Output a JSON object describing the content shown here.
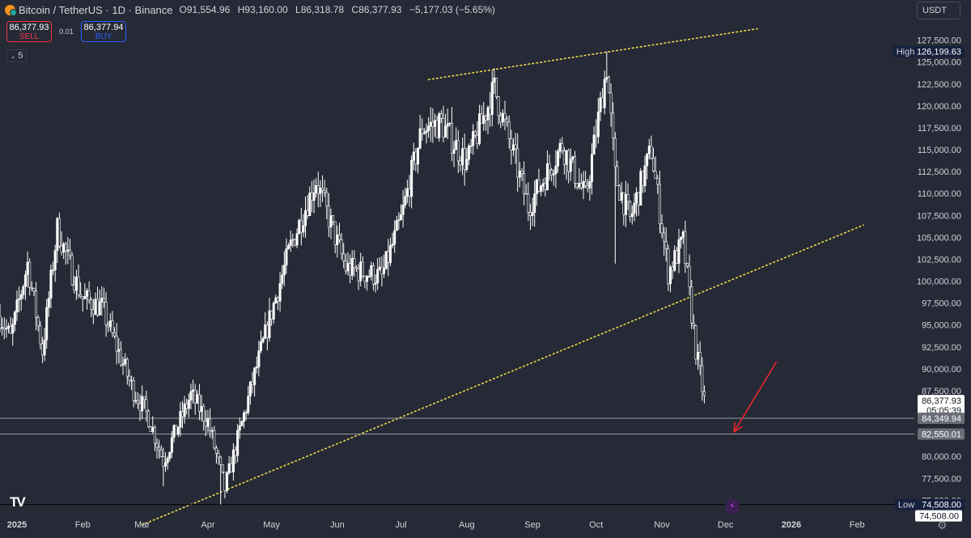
{
  "header": {
    "symbol": "Bitcoin / TetherUS · 1D · Binance",
    "ohlc": [
      {
        "key": "O",
        "value": "91,554.96"
      },
      {
        "key": "H",
        "value": "93,160.00"
      },
      {
        "key": "L",
        "value": "86,318.78"
      },
      {
        "key": "C",
        "value": "86,377.93"
      }
    ],
    "change": "−5,177.03 (−5.65%)"
  },
  "trade": {
    "sell_price": "86,377.93",
    "sell_label": "SELL",
    "spread": "0.01",
    "buy_price": "86,377.94",
    "buy_label": "BUY"
  },
  "indicators_count": "5",
  "currency": "USDT",
  "icons": {
    "tv_logo": "tradingview-logo-icon",
    "flash": "flash-icon",
    "settings": "gear-icon",
    "coin": "bitcoin-icon"
  },
  "colors": {
    "background": "#262a36",
    "candle": "#ffffff",
    "trendline": "#f0e04a",
    "arrow": "#e8262b",
    "high_badge": "#16213e",
    "last_price_badge": "#ffffff",
    "level_badge": "#6b6e78"
  },
  "chart_data": {
    "type": "candlestick",
    "y_range": [
      73000,
      129500
    ],
    "y_ticks": [
      "127,500.00",
      "125,000.00",
      "122,500.00",
      "120,000.00",
      "117,500.00",
      "115,000.00",
      "112,500.00",
      "110,000.00",
      "107,500.00",
      "105,000.00",
      "102,500.00",
      "100,000.00",
      "97,500.00",
      "95,000.00",
      "92,500.00",
      "90,000.00",
      "87,500.00",
      "85,000.00",
      "82,500.00",
      "80,000.00",
      "77,500.00",
      "75,000.00"
    ],
    "y_tick_values": [
      127500,
      125000,
      122500,
      120000,
      117500,
      115000,
      112500,
      110000,
      107500,
      105000,
      102500,
      100000,
      97500,
      95000,
      92500,
      90000,
      87500,
      85000,
      82500,
      80000,
      77500,
      75000
    ],
    "x_labels": [
      "2025",
      "Feb",
      "Mar",
      "Apr",
      "May",
      "Jun",
      "Jul",
      "Aug",
      "Sep",
      "Oct",
      "Nov",
      "Dec",
      "2026",
      "Feb"
    ],
    "x_label_dates": [
      "2025-01-01",
      "2025-02-01",
      "2025-03-01",
      "2025-04-01",
      "2025-05-01",
      "2025-06-01",
      "2025-07-01",
      "2025-08-01",
      "2025-09-01",
      "2025-10-01",
      "2025-11-01",
      "2025-12-01",
      "2026-01-01",
      "2026-02-01"
    ],
    "x_range": [
      "2024-12-24",
      "2026-02-28"
    ],
    "price_path": [
      [
        "2024-12-24",
        96000
      ],
      [
        "2024-12-29",
        93500
      ],
      [
        "2025-01-06",
        102000
      ],
      [
        "2025-01-13",
        92000
      ],
      [
        "2025-01-20",
        106000
      ],
      [
        "2025-01-27",
        101000
      ],
      [
        "2025-02-01",
        98000
      ],
      [
        "2025-02-10",
        97000
      ],
      [
        "2025-02-24",
        88000
      ],
      [
        "2025-03-04",
        84500
      ],
      [
        "2025-03-11",
        79500
      ],
      [
        "2025-03-24",
        87000
      ],
      [
        "2025-04-01",
        84000
      ],
      [
        "2025-04-09",
        76300
      ],
      [
        "2025-04-21",
        87500
      ],
      [
        "2025-05-01",
        96500
      ],
      [
        "2025-05-10",
        104000
      ],
      [
        "2025-05-22",
        111500
      ],
      [
        "2025-06-05",
        101500
      ],
      [
        "2025-06-22",
        100500
      ],
      [
        "2025-07-01",
        107000
      ],
      [
        "2025-07-11",
        117500
      ],
      [
        "2025-07-20",
        118000
      ],
      [
        "2025-08-01",
        113500
      ],
      [
        "2025-08-14",
        122000
      ],
      [
        "2025-08-30",
        108500
      ],
      [
        "2025-09-15",
        115500
      ],
      [
        "2025-09-26",
        109500
      ],
      [
        "2025-10-06",
        124500
      ],
      [
        "2025-10-10",
        112000
      ],
      [
        "2025-10-17",
        107000
      ],
      [
        "2025-10-27",
        115000
      ],
      [
        "2025-11-04",
        101000
      ],
      [
        "2025-11-11",
        104500
      ],
      [
        "2025-11-17",
        92200
      ],
      [
        "2025-11-21",
        86378
      ]
    ],
    "wicks": [
      {
        "date": "2025-04-07",
        "low": 74508
      },
      {
        "date": "2025-08-14",
        "high": 124300
      },
      {
        "date": "2025-10-06",
        "high": 126199.63
      },
      {
        "date": "2025-10-10",
        "low": 102000
      },
      {
        "date": "2025-03-11",
        "low": 76600
      }
    ],
    "trendlines": [
      {
        "from": [
          "2025-07-14",
          123000
        ],
        "to": [
          "2025-12-16",
          128800
        ],
        "style": "dotted"
      },
      {
        "from": [
          "2025-03-01",
          72200
        ],
        "to": [
          "2026-02-04",
          106400
        ],
        "style": "dotted"
      }
    ],
    "horizontal_levels": [
      84349.94,
      82550.01,
      74508.0
    ],
    "annotation_arrow": {
      "from": [
        "2025-12-25",
        90800
      ],
      "to": [
        "2025-12-05",
        82800
      ]
    },
    "last_price": {
      "value": "86,377.93",
      "countdown": "05:05:39"
    },
    "badges": {
      "high_label": "High",
      "high_value": "126,199.63",
      "low_label": "Low",
      "low_value": "74,508.00",
      "low_value_2": "74,508.00",
      "level_1": "84,349.94",
      "level_2": "82,550.01"
    }
  }
}
